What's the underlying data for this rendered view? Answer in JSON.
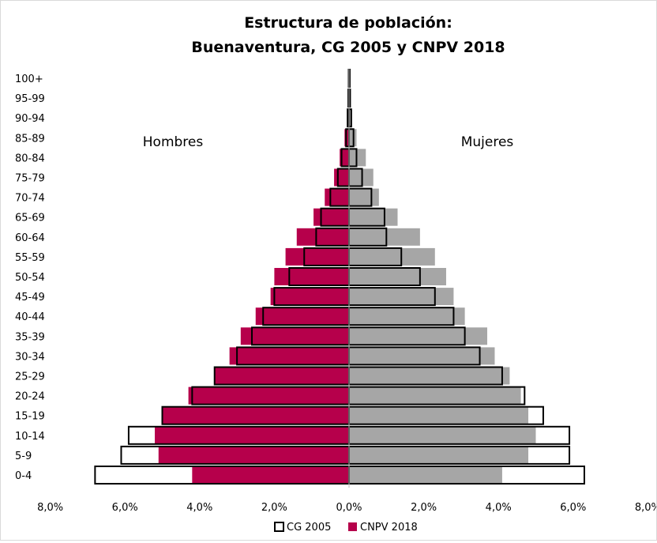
{
  "chart_data": {
    "type": "bar",
    "orientation": "horizontal-population-pyramid",
    "title_lines": [
      "Estructura de población:",
      "Buenaventura, CG 2005 y CNPV 2018"
    ],
    "categories": [
      "0-4",
      "5-9",
      "10-14",
      "15-19",
      "20-24",
      "25-29",
      "30-34",
      "35-39",
      "40-44",
      "45-49",
      "50-54",
      "55-59",
      "60-64",
      "65-69",
      "70-74",
      "75-79",
      "80-84",
      "85-89",
      "90-94",
      "95-99",
      "100+"
    ],
    "side_labels": {
      "left": "Hombres",
      "right": "Mujeres"
    },
    "x_ticks": [
      "8,0%",
      "6,0%",
      "4,0%",
      "2,0%",
      "0,0%",
      "2,0%",
      "4,0%",
      "6,0%",
      "8,0%"
    ],
    "x_tick_values": [
      -8,
      -6,
      -4,
      -2,
      0,
      2,
      4,
      6,
      8
    ],
    "xlim": [
      -8,
      8
    ],
    "unit": "%",
    "series": [
      {
        "name": "CNPV 2018",
        "style": "filled",
        "colors": {
          "hombres": "#b6004b",
          "mujeres": "#a6a6a6"
        },
        "hombres": [
          4.2,
          5.1,
          5.2,
          5.0,
          4.3,
          3.6,
          3.2,
          2.9,
          2.5,
          2.1,
          2.0,
          1.7,
          1.4,
          0.95,
          0.65,
          0.4,
          0.25,
          0.12,
          0.05,
          0.03,
          0.01
        ],
        "mujeres": [
          4.1,
          4.8,
          5.0,
          4.8,
          4.6,
          4.3,
          3.9,
          3.7,
          3.1,
          2.8,
          2.6,
          2.3,
          1.9,
          1.3,
          0.8,
          0.65,
          0.45,
          0.2,
          0.08,
          0.04,
          0.02
        ]
      },
      {
        "name": "CG 2005",
        "style": "outline",
        "colors": {
          "outline": "#000000"
        },
        "hombres": [
          6.8,
          6.1,
          5.9,
          5.0,
          4.2,
          3.6,
          3.0,
          2.6,
          2.3,
          2.0,
          1.6,
          1.2,
          0.88,
          0.75,
          0.5,
          0.3,
          0.2,
          0.08,
          0.04,
          0.02,
          0.01
        ],
        "mujeres": [
          6.3,
          5.9,
          5.9,
          5.2,
          4.7,
          4.1,
          3.5,
          3.1,
          2.8,
          2.3,
          1.9,
          1.4,
          1.0,
          0.95,
          0.6,
          0.35,
          0.2,
          0.12,
          0.06,
          0.03,
          0.02
        ]
      }
    ],
    "legend": {
      "position": "bottom",
      "entries": [
        {
          "label": "CG 2005",
          "style": "outline"
        },
        {
          "label": "CNPV 2018",
          "color": "#b6004b"
        }
      ]
    },
    "grid": false
  }
}
